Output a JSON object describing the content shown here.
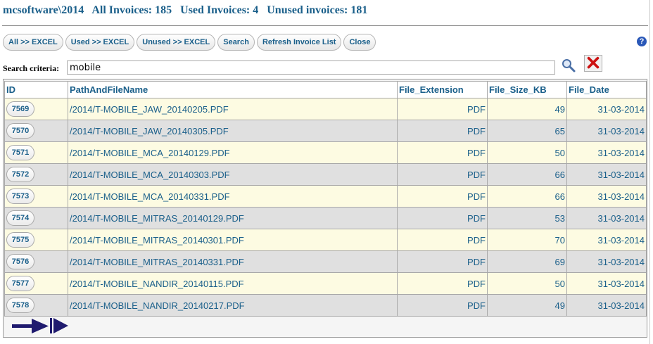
{
  "header": {
    "path": "mcsoftware\\2014",
    "all_label": "All Invoices:",
    "all_count": "185",
    "used_label": "Used Invoices:",
    "used_count": "4",
    "unused_label": "Unused invoices:",
    "unused_count": "181"
  },
  "toolbar": {
    "all_excel": "All >> EXCEL",
    "used_excel": "Used >> EXCEL",
    "unused_excel": "Unused >> EXCEL",
    "search": "Search",
    "refresh": "Refresh Invoice List",
    "close": "Close"
  },
  "help": {
    "glyph": "?"
  },
  "search": {
    "label": "Search criteria:",
    "value": "mobile"
  },
  "grid": {
    "columns": [
      "ID",
      "PathAndFileName",
      "File_Extension",
      "File_Size_KB",
      "File_Date"
    ],
    "rows": [
      {
        "id": "7569",
        "path": "/2014/T-MOBILE_JAW_20140205.PDF",
        "ext": "PDF",
        "size": "49",
        "date": "31-03-2014"
      },
      {
        "id": "7570",
        "path": "/2014/T-MOBILE_JAW_20140305.PDF",
        "ext": "PDF",
        "size": "65",
        "date": "31-03-2014"
      },
      {
        "id": "7571",
        "path": "/2014/T-MOBILE_MCA_20140129.PDF",
        "ext": "PDF",
        "size": "50",
        "date": "31-03-2014"
      },
      {
        "id": "7572",
        "path": "/2014/T-MOBILE_MCA_20140303.PDF",
        "ext": "PDF",
        "size": "66",
        "date": "31-03-2014"
      },
      {
        "id": "7573",
        "path": "/2014/T-MOBILE_MCA_20140331.PDF",
        "ext": "PDF",
        "size": "66",
        "date": "31-03-2014"
      },
      {
        "id": "7574",
        "path": "/2014/T-MOBILE_MITRAS_20140129.PDF",
        "ext": "PDF",
        "size": "53",
        "date": "31-03-2014"
      },
      {
        "id": "7575",
        "path": "/2014/T-MOBILE_MITRAS_20140301.PDF",
        "ext": "PDF",
        "size": "70",
        "date": "31-03-2014"
      },
      {
        "id": "7576",
        "path": "/2014/T-MOBILE_MITRAS_20140331.PDF",
        "ext": "PDF",
        "size": "69",
        "date": "31-03-2014"
      },
      {
        "id": "7577",
        "path": "/2014/T-MOBILE_NANDIR_20140115.PDF",
        "ext": "PDF",
        "size": "50",
        "date": "31-03-2014"
      },
      {
        "id": "7578",
        "path": "/2014/T-MOBILE_NANDIR_20140217.PDF",
        "ext": "PDF",
        "size": "49",
        "date": "31-03-2014"
      }
    ]
  },
  "pager": {
    "next_icon": "arrow-right-icon",
    "last_icon": "skip-to-end-icon"
  },
  "colors": {
    "text_accent": "#1a5f8a",
    "row_odd": "#fdfbe2",
    "row_even": "#e0e0e0",
    "pager_arrow": "#1f1a6e",
    "clear_x": "#cc1111"
  }
}
